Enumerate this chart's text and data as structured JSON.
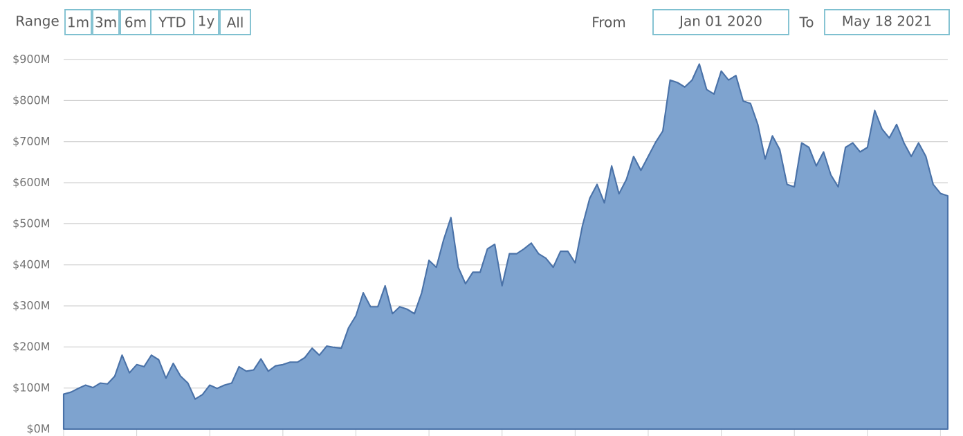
{
  "chart_data": {
    "type": "area",
    "categories": [
      null,
      null,
      null,
      null,
      null,
      null,
      null,
      null,
      null,
      null,
      null,
      null,
      null,
      null,
      null,
      null,
      null,
      null,
      null,
      null,
      null,
      null,
      null,
      null,
      null,
      null,
      null,
      null,
      null,
      null,
      null,
      null,
      null,
      null,
      null,
      null,
      null,
      null,
      null,
      null,
      null,
      null,
      null,
      null,
      null,
      null,
      null,
      null,
      null,
      null,
      null,
      null,
      null,
      null,
      null,
      null,
      null,
      null,
      null,
      null,
      null,
      null,
      null,
      null,
      null,
      null,
      null,
      null,
      null,
      null,
      null,
      null,
      null,
      null,
      null,
      null,
      null,
      null,
      null,
      null,
      null,
      null,
      null,
      null,
      null,
      null,
      null,
      null,
      null,
      null,
      null,
      null,
      null,
      null,
      null,
      null,
      null,
      null,
      null,
      null,
      null,
      null,
      null,
      null,
      null,
      null,
      null,
      null,
      null,
      null,
      null,
      null,
      null,
      null,
      null,
      null,
      null,
      null,
      null,
      null,
      null,
      null
    ],
    "values": [
      85,
      90,
      99,
      107,
      101,
      112,
      110,
      129,
      180,
      137,
      157,
      152,
      180,
      169,
      124,
      160,
      129,
      112,
      73,
      84,
      107,
      99,
      107,
      112,
      152,
      141,
      144,
      171,
      141,
      154,
      157,
      163,
      163,
      174,
      197,
      180,
      202,
      199,
      197,
      247,
      276,
      332,
      298,
      298,
      349,
      281,
      298,
      292,
      281,
      332,
      411,
      394,
      461,
      515,
      394,
      354,
      382,
      382,
      439,
      450,
      349,
      427,
      427,
      439,
      453,
      427,
      416,
      394,
      433,
      433,
      405,
      495,
      562,
      596,
      551,
      641,
      573,
      607,
      664,
      630,
      664,
      698,
      726,
      850,
      844,
      833,
      850,
      889,
      827,
      816,
      872,
      850,
      861,
      799,
      793,
      742,
      658,
      714,
      681,
      596,
      590,
      697,
      686,
      641,
      675,
      619,
      590,
      686,
      697,
      675,
      686,
      776,
      731,
      709,
      742,
      697,
      664,
      697,
      664,
      596,
      574,
      568
    ],
    "color": "#7ea3cf",
    "ylim": [
      0,
      900
    ],
    "yticks": [
      {
        "value": 0,
        "label": "$0M"
      },
      {
        "value": 100,
        "label": "$100M"
      },
      {
        "value": 200,
        "label": "$200M"
      },
      {
        "value": 300,
        "label": "$300M"
      },
      {
        "value": 400,
        "label": "$400M"
      },
      {
        "value": 500,
        "label": "$500M"
      },
      {
        "value": 600,
        "label": "$600M"
      },
      {
        "value": 700,
        "label": "$700M"
      },
      {
        "value": 800,
        "label": "$800M"
      },
      {
        "value": 900,
        "label": "$900M"
      }
    ],
    "tick_labels": "y",
    "grid": "y",
    "annotations": [
      "Range",
      "1m",
      "3m",
      "6m",
      "YTD",
      "1y",
      "All",
      "From",
      "Jan 01 2020",
      "To",
      "May 18 2021"
    ]
  }
}
